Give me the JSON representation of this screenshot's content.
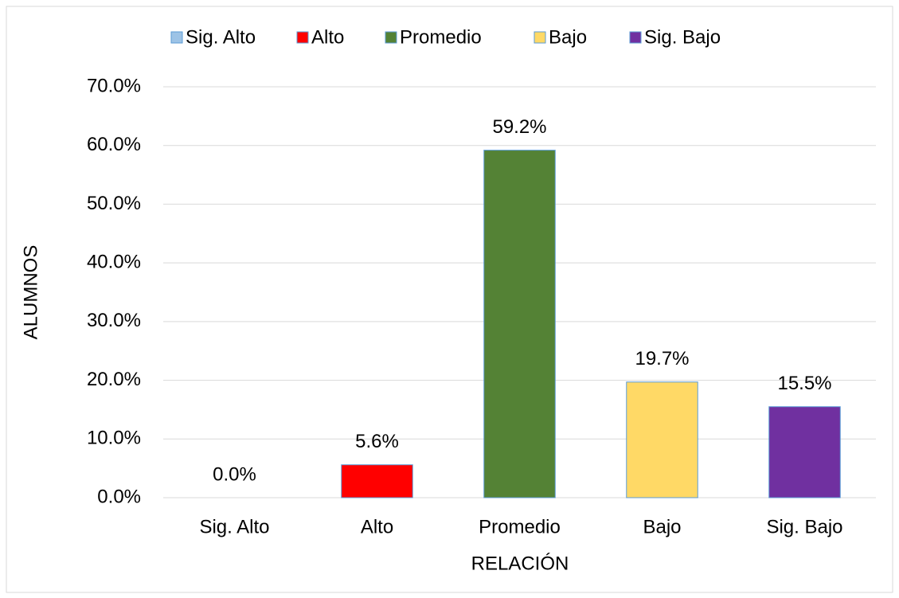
{
  "chart_data": {
    "type": "bar",
    "categories": [
      "Sig. Alto",
      "Alto",
      "Promedio",
      "Bajo",
      "Sig. Bajo"
    ],
    "values": [
      0,
      5.6,
      59.2,
      19.7,
      15.5
    ],
    "value_labels": [
      "0.0%",
      "5.6%",
      "59.2%",
      "19.7%",
      "15.5%"
    ],
    "colors": [
      "#9dc3e6",
      "#ff0000",
      "#548235",
      "#ffd966",
      "#7030a0"
    ],
    "x_label": "RELACIÓN",
    "y_label": "ALUMNOS",
    "ylim": [
      0,
      70
    ],
    "yticks": [
      {
        "value": 0,
        "label": "0.0%"
      },
      {
        "value": 10,
        "label": "10.0%"
      },
      {
        "value": 20,
        "label": "20.0%"
      },
      {
        "value": 30,
        "label": "30.0%"
      },
      {
        "value": 40,
        "label": "40.0%"
      },
      {
        "value": 50,
        "label": "50.0%"
      },
      {
        "value": 60,
        "label": "60.0%"
      },
      {
        "value": 70,
        "label": "70.0%"
      }
    ],
    "grid": true,
    "legend": "top"
  }
}
